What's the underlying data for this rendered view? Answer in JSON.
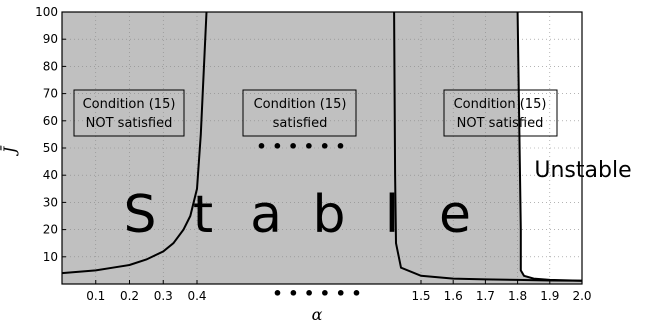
{
  "chart_data": {
    "type": "area",
    "xlabel": "α",
    "ylabel": "J̄",
    "xlim": [
      0.0,
      2.0
    ],
    "ylim": [
      0,
      100
    ],
    "grid": true,
    "x_tick_labels": [
      "0.1",
      "0.2",
      "0.3",
      "0.4",
      "1.5",
      "1.6",
      "1.7",
      "1.8",
      "1.9",
      "2.0"
    ],
    "x_tick_values": [
      0.1,
      0.2,
      0.3,
      0.4,
      1.5,
      1.6,
      1.7,
      1.8,
      1.9,
      2.0
    ],
    "y_ticks": [
      10,
      20,
      30,
      40,
      50,
      60,
      70,
      80,
      90,
      100
    ],
    "axis_break_dots": "• • • • • •",
    "regions": [
      {
        "label": "Stable",
        "letters": [
          "S",
          "t",
          "a",
          "b",
          "l",
          "e"
        ],
        "color": "#c0c0c0",
        "x_range": [
          0.0,
          1.8
        ]
      },
      {
        "label": "Unstable",
        "color": "#ffffff",
        "x_range": [
          1.8,
          2.0
        ]
      }
    ],
    "annotations": [
      {
        "id": "left",
        "lines": [
          "Condition (15)",
          "NOT satisfied"
        ]
      },
      {
        "id": "middle",
        "lines": [
          "Condition (15)",
          "satisfied"
        ]
      },
      {
        "id": "right",
        "lines": [
          "Condition (15)",
          "NOT satisfied"
        ]
      }
    ],
    "series": [
      {
        "segment": "left",
        "x": [
          0.0,
          0.1,
          0.15,
          0.2,
          0.25,
          0.3,
          0.33,
          0.36,
          0.38,
          0.4,
          0.41,
          0.42,
          0.43,
          0.44,
          0.45
        ],
        "y": [
          4,
          5,
          6,
          7,
          9,
          12,
          15,
          20,
          25,
          35,
          45,
          55,
          70,
          85,
          100
        ]
      },
      {
        "segment": "middle",
        "x": [
          1.44,
          1.445,
          1.45,
          1.46,
          1.5,
          1.6,
          1.7,
          1.8,
          1.9,
          2.0
        ],
        "y": [
          100,
          40,
          15,
          6,
          3,
          2,
          1.7,
          1.5,
          1.3,
          1.2
        ]
      },
      {
        "segment": "right",
        "x": [
          1.8,
          1.805,
          1.81,
          1.81,
          1.82,
          1.85,
          1.9,
          2.0
        ],
        "y": [
          100,
          60,
          20,
          5,
          3,
          2,
          1.5,
          1.2
        ]
      }
    ]
  }
}
